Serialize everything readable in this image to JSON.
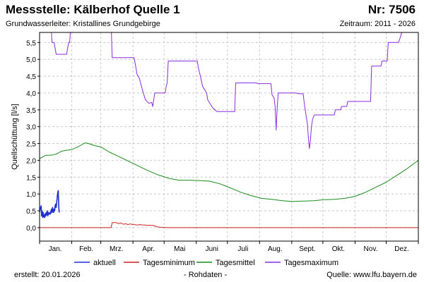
{
  "header": {
    "title": "Messstelle: Kälberhof Quelle 1",
    "station_number": "Nr: 7506",
    "aquifer": "Grundwasserleiter: Kristallines Grundgebirge",
    "period": "Zeitraum: 2011 - 2026"
  },
  "footer": {
    "created": "erstellt:  20.01.2026",
    "raw_data": "- Rohdaten -",
    "source": "Quelle: www.lfu.bayern.de"
  },
  "colors": {
    "aktuell": "#1f2fd0",
    "tagesminimum": "#cc2222",
    "tagesmittel": "#1a8a1a",
    "tagesmaximum": "#8a2be2",
    "grid": "#c8c8c8"
  },
  "chart_data": {
    "type": "line",
    "xlabel": "",
    "ylabel": "Quellschüttung [l/s]",
    "x_unit": "day of year",
    "xlim": [
      1,
      366
    ],
    "ylim": [
      -0.4,
      5.8
    ],
    "y_ticks": [
      "0,0",
      "0,5",
      "1,0",
      "1,5",
      "2,0",
      "2,5",
      "3,0",
      "3,5",
      "4,0",
      "4,5",
      "5,0",
      "5,5"
    ],
    "x_ticks": [
      {
        "label": "Jan.",
        "day": 16
      },
      {
        "label": "Feb.",
        "day": 46
      },
      {
        "label": "Mrz.",
        "day": 75
      },
      {
        "label": "Apr.",
        "day": 106
      },
      {
        "label": "Mai",
        "day": 136
      },
      {
        "label": "Juni",
        "day": 167
      },
      {
        "label": "Juli",
        "day": 197
      },
      {
        "label": "Aug.",
        "day": 228
      },
      {
        "label": "Sept.",
        "day": 259
      },
      {
        "label": "Okt.",
        "day": 289
      },
      {
        "label": "Nov.",
        "day": 320
      },
      {
        "label": "Dez.",
        "day": 350
      }
    ],
    "month_boundaries": [
      1,
      32,
      60,
      91,
      121,
      152,
      182,
      213,
      244,
      274,
      305,
      335,
      366
    ],
    "grid": true,
    "legend_position": "bottom",
    "series": [
      {
        "name": "aktuell",
        "x": [
          1,
          1.5,
          2,
          2.5,
          3,
          3.5,
          4,
          4.5,
          5,
          5.5,
          6,
          6.5,
          7,
          7.5,
          8,
          8.5,
          9,
          9.5,
          10,
          10.5,
          11,
          11.5,
          12,
          12.5,
          13,
          13.5,
          14,
          14.5,
          15,
          15.5,
          16,
          16.5,
          17,
          17.5,
          18,
          18.5,
          19,
          19.5,
          20
        ],
        "y": [
          0.45,
          0.6,
          0.55,
          0.65,
          0.35,
          0.5,
          0.3,
          0.45,
          0.32,
          0.38,
          0.3,
          0.42,
          0.35,
          0.45,
          0.38,
          0.5,
          0.35,
          0.45,
          0.4,
          0.42,
          0.45,
          0.4,
          0.5,
          0.55,
          0.45,
          0.6,
          0.5,
          0.45,
          0.55,
          0.5,
          0.65,
          0.7,
          0.6,
          0.75,
          0.9,
          1.05,
          1.1,
          0.6,
          0.45
        ]
      },
      {
        "name": "Tagesminimum",
        "x": [
          1,
          70,
          71,
          75,
          77,
          79,
          82,
          84,
          86,
          88,
          92,
          95,
          98,
          100,
          102,
          106,
          110,
          113,
          115,
          118,
          125,
          366
        ],
        "y": [
          0,
          0,
          0.15,
          0.15,
          0.12,
          0.14,
          0.1,
          0.12,
          0.09,
          0.11,
          0.09,
          0.08,
          0.09,
          0.08,
          0.08,
          0.07,
          0.07,
          0.04,
          0.02,
          0.01,
          0,
          0
        ]
      },
      {
        "name": "Tagesmittel",
        "x": [
          1,
          4,
          7,
          10,
          14,
          18,
          22,
          27,
          32,
          38,
          42,
          45,
          48,
          52,
          55,
          60,
          68,
          75,
          85,
          95,
          105,
          115,
          125,
          135,
          145,
          155,
          165,
          175,
          185,
          195,
          205,
          215,
          225,
          235,
          245,
          255,
          265,
          275,
          285,
          295,
          305,
          315,
          325,
          335,
          345,
          355,
          366
        ],
        "y": [
          2.05,
          2.1,
          2.15,
          2.15,
          2.16,
          2.2,
          2.27,
          2.3,
          2.32,
          2.4,
          2.47,
          2.52,
          2.5,
          2.46,
          2.43,
          2.4,
          2.25,
          2.15,
          2.0,
          1.85,
          1.7,
          1.57,
          1.47,
          1.41,
          1.41,
          1.4,
          1.38,
          1.3,
          1.18,
          1.05,
          0.95,
          0.87,
          0.84,
          0.8,
          0.78,
          0.79,
          0.8,
          0.83,
          0.84,
          0.87,
          0.93,
          1.05,
          1.2,
          1.35,
          1.55,
          1.75,
          2.0
        ]
      },
      {
        "name": "Tagesmaximum",
        "x": [
          1,
          12,
          13,
          15,
          17,
          20,
          27,
          29,
          30,
          31,
          70,
          71,
          92,
          93,
          95,
          97,
          101,
          103,
          106,
          107,
          109,
          110,
          112,
          122,
          123,
          124,
          125,
          141,
          142,
          153,
          154,
          156,
          158,
          162,
          163,
          168,
          170,
          172,
          175,
          177,
          189,
          190,
          210,
          211,
          224,
          225,
          226,
          227,
          228,
          229,
          230,
          231,
          249,
          250,
          255,
          256,
          257,
          258,
          259,
          260,
          261,
          262,
          263,
          264,
          265,
          266,
          267,
          269,
          285,
          286,
          291,
          292,
          297,
          298,
          300,
          301,
          320,
          321,
          330,
          331,
          336,
          337,
          341,
          342,
          346,
          347,
          348,
          349,
          350,
          351,
          353,
          354,
          359,
          360,
          366
        ],
        "y": [
          6.0,
          6.0,
          5.5,
          5.5,
          5.15,
          5.15,
          5.15,
          5.5,
          5.5,
          6.0,
          6.0,
          5.05,
          5.05,
          4.9,
          4.55,
          4.45,
          4.0,
          3.8,
          3.7,
          3.7,
          3.72,
          3.6,
          4.0,
          4.0,
          4.2,
          4.3,
          4.95,
          4.95,
          4.95,
          4.95,
          4.75,
          4.5,
          4.2,
          4.0,
          3.8,
          3.55,
          3.5,
          3.45,
          3.45,
          3.45,
          3.45,
          4.3,
          4.3,
          4.28,
          4.28,
          3.95,
          3.9,
          3.85,
          3.6,
          2.9,
          3.6,
          4.0,
          4.0,
          3.98,
          3.98,
          3.7,
          3.5,
          3.3,
          3.1,
          2.7,
          2.35,
          2.6,
          3.0,
          3.2,
          3.3,
          3.35,
          3.35,
          3.35,
          3.35,
          3.5,
          3.5,
          3.6,
          3.6,
          3.75,
          3.75,
          3.75,
          3.75,
          4.8,
          4.8,
          4.95,
          4.95,
          5.5,
          5.5,
          5.5,
          5.5,
          5.5,
          5.6,
          5.7,
          5.8,
          5.9,
          6.0,
          6.0,
          6.0,
          6.0,
          6.0
        ]
      }
    ]
  }
}
